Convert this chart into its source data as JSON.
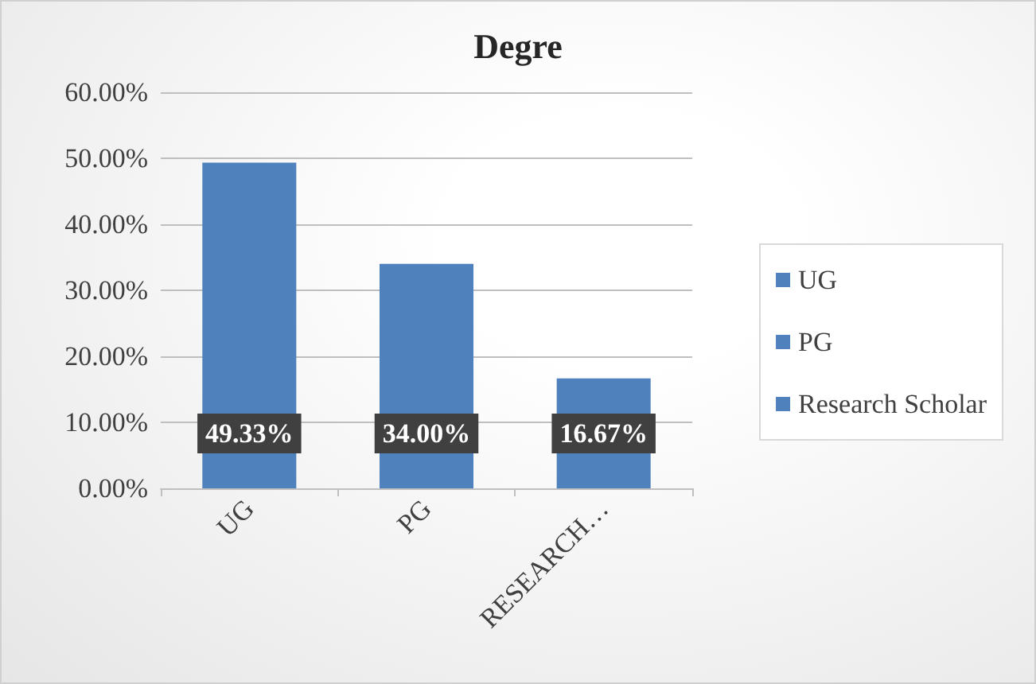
{
  "chart_data": {
    "type": "bar",
    "title": "Degre",
    "categories": [
      "UG",
      "PG",
      "RESEARCH…"
    ],
    "stacked": true,
    "series": [
      {
        "name": "UG",
        "color": "#4f81bd",
        "values": [
          49.33,
          null,
          null
        ],
        "value_labels": [
          "49.33%",
          null,
          null
        ]
      },
      {
        "name": "PG",
        "color": "#4f81bd",
        "values": [
          null,
          34.0,
          null
        ],
        "value_labels": [
          null,
          "34.00%",
          null
        ]
      },
      {
        "name": "Research Scholar",
        "color": "#4f81bd",
        "values": [
          null,
          null,
          16.67
        ],
        "value_labels": [
          null,
          null,
          "16.67%"
        ]
      }
    ],
    "ylim": [
      0,
      60
    ],
    "yticks": [
      {
        "value": 0,
        "label": "0.00%"
      },
      {
        "value": 10,
        "label": "10.00%"
      },
      {
        "value": 20,
        "label": "20.00%"
      },
      {
        "value": 30,
        "label": "30.00%"
      },
      {
        "value": 40,
        "label": "40.00%"
      },
      {
        "value": 50,
        "label": "50.00%"
      },
      {
        "value": 60,
        "label": "60.00%"
      }
    ],
    "grid": "y",
    "legend": "right"
  }
}
